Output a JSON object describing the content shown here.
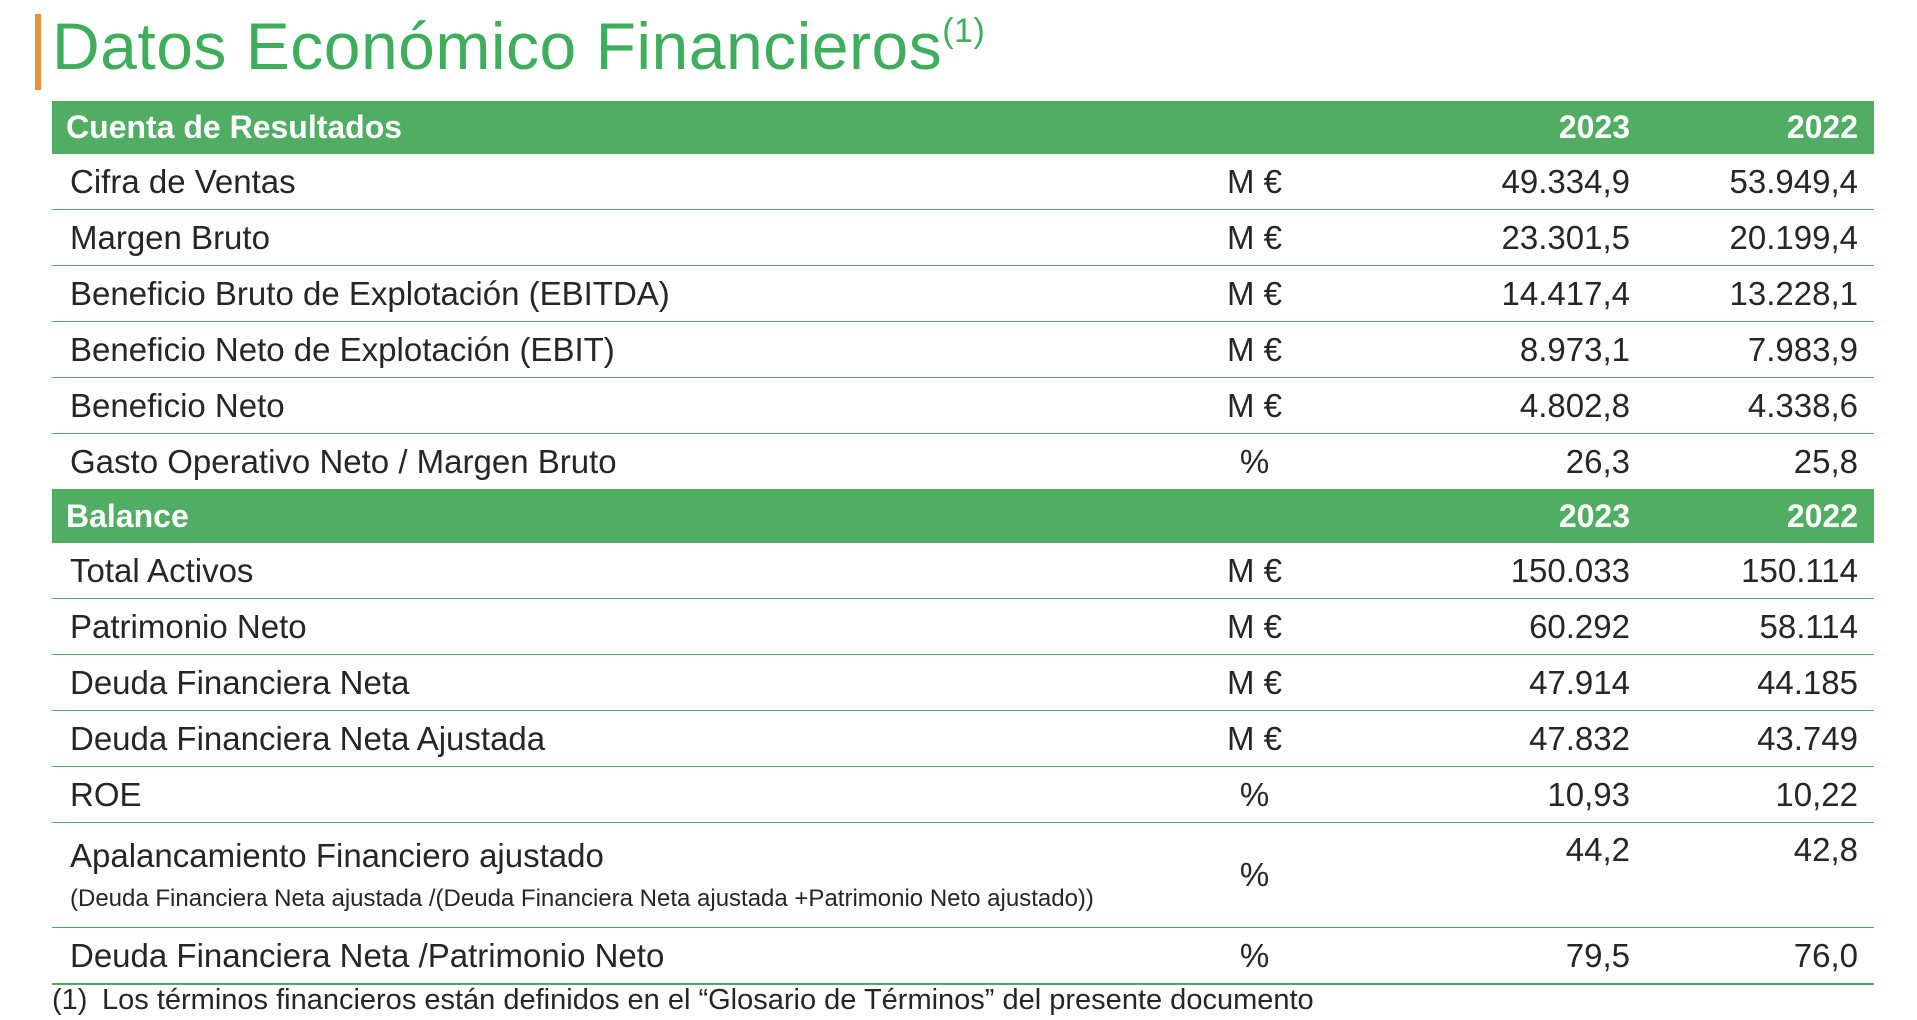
{
  "title": {
    "text": "Datos Económico Financieros",
    "superscript": "(1)"
  },
  "accent_colors": {
    "green": "#52ad64",
    "title_green": "#3fae5c",
    "orange": "#e8953a"
  },
  "income_statement": {
    "header": {
      "label": "Cuenta de Resultados",
      "year1": "2023",
      "year2": "2022"
    },
    "rows": [
      {
        "label": "Cifra de Ventas",
        "unit": "M €",
        "y2023": "49.334,9",
        "y2022": "53.949,4"
      },
      {
        "label": "Margen Bruto",
        "unit": "M €",
        "y2023": "23.301,5",
        "y2022": "20.199,4"
      },
      {
        "label": "Beneficio Bruto de Explotación (EBITDA)",
        "unit": "M €",
        "y2023": "14.417,4",
        "y2022": "13.228,1"
      },
      {
        "label": "Beneficio Neto de Explotación (EBIT)",
        "unit": "M €",
        "y2023": "8.973,1",
        "y2022": "7.983,9"
      },
      {
        "label": "Beneficio Neto",
        "unit": "M €",
        "y2023": "4.802,8",
        "y2022": "4.338,6"
      },
      {
        "label": "Gasto Operativo Neto / Margen Bruto",
        "unit": "%",
        "y2023": "26,3",
        "y2022": "25,8"
      }
    ]
  },
  "balance": {
    "header": {
      "label": "Balance",
      "year1": "2023",
      "year2": "2022"
    },
    "rows": [
      {
        "label": "Total Activos",
        "unit": "M €",
        "y2023": "150.033",
        "y2022": "150.114"
      },
      {
        "label": "Patrimonio Neto",
        "unit": "M €",
        "y2023": "60.292",
        "y2022": "58.114"
      },
      {
        "label": "Deuda Financiera Neta",
        "unit": "M €",
        "y2023": "47.914",
        "y2022": "44.185"
      },
      {
        "label": "Deuda Financiera Neta Ajustada",
        "unit": "M €",
        "y2023": "47.832",
        "y2022": "43.749"
      },
      {
        "label": "ROE",
        "unit": "%",
        "y2023": "10,93",
        "y2022": "10,22"
      },
      {
        "label": "Apalancamiento Financiero ajustado",
        "sublabel": "(Deuda Financiera Neta ajustada /(Deuda Financiera Neta ajustada +Patrimonio Neto ajustado))",
        "unit": "%",
        "y2023": "44,2",
        "y2022": "42,8"
      },
      {
        "label": "Deuda Financiera Neta /Patrimonio Neto",
        "unit": "%",
        "y2023": "79,5",
        "y2022": "76,0"
      }
    ]
  },
  "footnote": {
    "mark": "(1)",
    "text": "Los términos financieros están definidos en el “Glosario de Términos” del presente documento"
  }
}
